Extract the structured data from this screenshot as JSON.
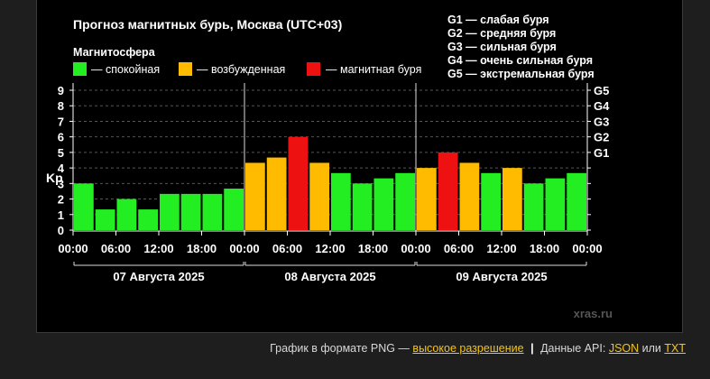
{
  "chart_data": {
    "type": "bar",
    "title": "Прогноз магнитных бурь, Москва (UTC+03)",
    "legend_title": "Магнитосфера",
    "legend": [
      {
        "key": "calm",
        "label": "— спокойная",
        "color": "#22ee22"
      },
      {
        "key": "excited",
        "label": "— возбужденная",
        "color": "#ffbb00"
      },
      {
        "key": "storm",
        "label": "— магнитная буря",
        "color": "#ee1111"
      }
    ],
    "storm_scale": [
      "G1 — слабая буря",
      "G2 — средняя буря",
      "G3 — сильная буря",
      "G4 — очень сильная буря",
      "G5 — экстремальная буря"
    ],
    "ylabel": "Kp",
    "ylim": [
      0,
      9
    ],
    "y_ticks": [
      "0",
      "1",
      "2",
      "3",
      "4",
      "5",
      "6",
      "7",
      "8",
      "9"
    ],
    "right_ticks": [
      {
        "label": "G1",
        "value": 5
      },
      {
        "label": "G2",
        "value": 6
      },
      {
        "label": "G3",
        "value": 7
      },
      {
        "label": "G4",
        "value": 8
      },
      {
        "label": "G5",
        "value": 9
      }
    ],
    "x_tick_labels": [
      "00:00",
      "06:00",
      "12:00",
      "18:00",
      "00:00",
      "06:00",
      "12:00",
      "18:00",
      "00:00",
      "06:00",
      "12:00",
      "18:00",
      "00:00"
    ],
    "days": [
      "07 Августа 2025",
      "08 Августа 2025",
      "09 Августа 2025"
    ],
    "series": [
      {
        "name": "Kp",
        "values": [
          3.0,
          1.33,
          2.0,
          1.33,
          2.33,
          2.33,
          2.33,
          2.67,
          4.33,
          4.67,
          6.0,
          4.33,
          3.67,
          3.0,
          3.33,
          3.67,
          4.0,
          5.0,
          4.33,
          3.67,
          4.0,
          3.0,
          3.33,
          3.67
        ],
        "levels": [
          "calm",
          "calm",
          "calm",
          "calm",
          "calm",
          "calm",
          "calm",
          "calm",
          "excited",
          "excited",
          "storm",
          "excited",
          "calm",
          "calm",
          "calm",
          "calm",
          "excited",
          "storm",
          "excited",
          "calm",
          "excited",
          "calm",
          "calm",
          "calm"
        ]
      }
    ],
    "watermark": "xras.ru"
  },
  "footer": {
    "prefix": "График в формате PNG —",
    "hires_link": "высокое разрешение",
    "separator": "|",
    "api_prefix": "Данные API:",
    "json_link": "JSON",
    "or_text": "или",
    "txt_link": "TXT"
  }
}
